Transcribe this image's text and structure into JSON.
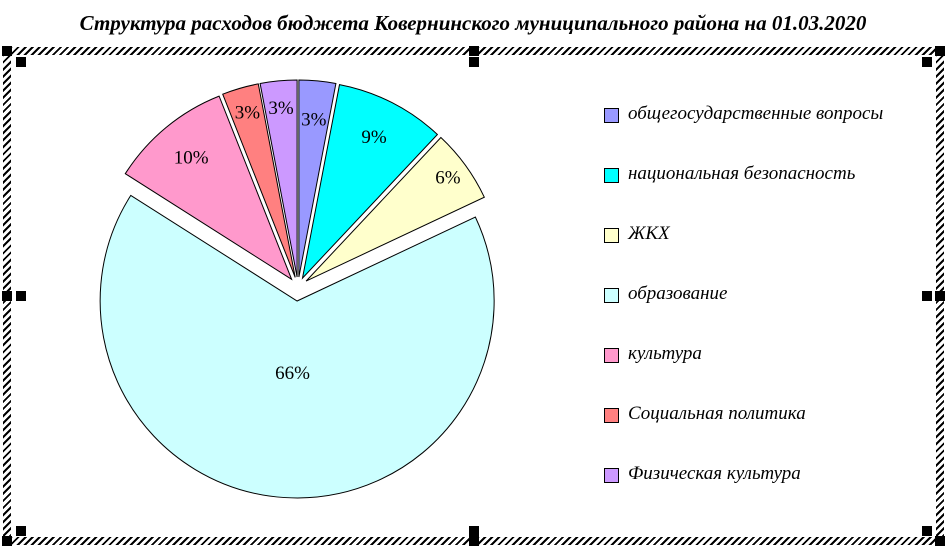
{
  "chart_data": {
    "type": "pie",
    "title": "Структура расходов бюджета Ковернинского муниципального района на 01.03.2020",
    "categories": [
      "общегосударственные вопросы",
      "национальная безопасность",
      "ЖКХ",
      "образование",
      "культура",
      "Социальная политика",
      "Физическая культура"
    ],
    "values": [
      3,
      9,
      6,
      66,
      10,
      3,
      3
    ],
    "data_labels": [
      "3%",
      "9%",
      "6%",
      "66%",
      "10%",
      "3%",
      "3%"
    ],
    "colors": [
      "#9999FF",
      "#00FFFF",
      "#FFFFCC",
      "#CCFFFF",
      "#FF99CC",
      "#FF8080",
      "#CC99FF"
    ],
    "slice_border_color": "#000000",
    "legend_position": "right",
    "exploded": true,
    "start_angle": "12-oclock",
    "direction": "clockwise"
  },
  "selection": {
    "state": "selected",
    "handle_color": "#000000"
  }
}
